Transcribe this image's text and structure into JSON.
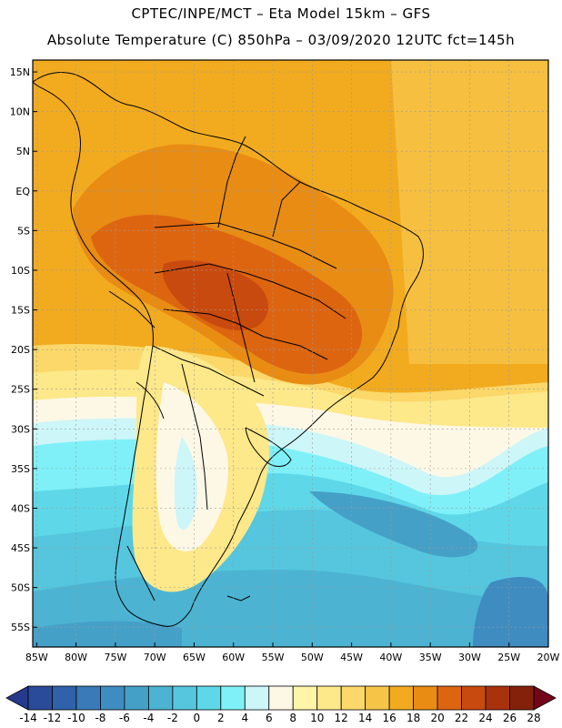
{
  "header": {
    "line1": "CPTEC/INPE/MCT –  Eta Model 15km – GFS",
    "line2": "Absolute Temperature (C) 850hPa – 03/09/2020 12UTC fct=145h"
  },
  "map": {
    "lat_labels": [
      "15N",
      "10N",
      "5N",
      "EQ",
      "5S",
      "10S",
      "15S",
      "20S",
      "25S",
      "30S",
      "35S",
      "40S",
      "45S",
      "50S",
      "55S"
    ],
    "lat_values": [
      15,
      10,
      5,
      0,
      -5,
      -10,
      -15,
      -20,
      -25,
      -30,
      -35,
      -40,
      -45,
      -50,
      -55
    ],
    "lon_labels": [
      "85W",
      "80W",
      "75W",
      "70W",
      "65W",
      "60W",
      "55W",
      "50W",
      "45W",
      "40W",
      "35W",
      "30W",
      "25W",
      "20W"
    ],
    "lon_values": [
      -85,
      -80,
      -75,
      -70,
      -65,
      -60,
      -55,
      -50,
      -45,
      -40,
      -35,
      -30,
      -25,
      -20
    ],
    "lon_range": [
      -85.5,
      -20
    ],
    "lat_range": [
      -57.5,
      16.5
    ]
  },
  "colorbar": {
    "labels": [
      "-14",
      "-12",
      "-10",
      "-8",
      "-6",
      "-4",
      "-2",
      "0",
      "2",
      "4",
      "6",
      "8",
      "10",
      "12",
      "14",
      "16",
      "18",
      "20",
      "22",
      "24",
      "26",
      "28"
    ],
    "colors": [
      "#2a4a9a",
      "#2f62a8",
      "#3a7ab8",
      "#3f8cc0",
      "#45a0c8",
      "#4cb4d2",
      "#55c6de",
      "#5ed8e8",
      "#7ff0f8",
      "#cdf6f8",
      "#fdf8e6",
      "#fff5a8",
      "#fde88a",
      "#fbd869",
      "#f6c447",
      "#f2ab1f",
      "#e88c14",
      "#dd6510",
      "#c94a0e",
      "#a8320c",
      "#84210a"
    ],
    "end_colors": {
      "low": "#253a8c",
      "high": "#73041a"
    }
  }
}
